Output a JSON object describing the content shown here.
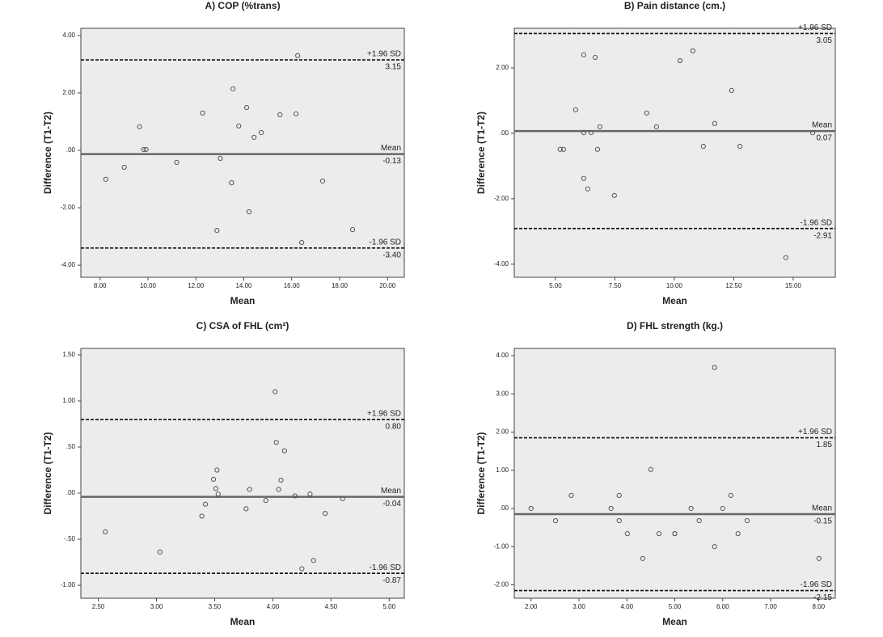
{
  "chart_data": [
    {
      "type": "scatter",
      "title": "A) COP (%trans)",
      "xlabel": "Mean",
      "ylabel": "Difference (T1-T2)",
      "color": "#555555",
      "x": [
        8.24,
        9.01,
        9.65,
        9.82,
        9.92,
        11.2,
        12.28,
        13.02,
        12.88,
        13.49,
        13.55,
        13.79,
        14.12,
        14.22,
        14.43,
        14.73,
        15.51,
        16.18,
        16.25,
        16.42,
        17.29,
        18.54
      ],
      "values": [
        -1.01,
        -0.59,
        0.82,
        0.03,
        0.03,
        -0.42,
        1.3,
        -0.28,
        -2.79,
        -1.13,
        2.14,
        0.85,
        1.49,
        -2.14,
        0.45,
        0.62,
        1.24,
        1.27,
        3.3,
        -3.21,
        -1.07,
        -2.76
      ],
      "xlim": [
        7.2,
        20.7
      ],
      "ylim": [
        -4.42,
        4.25
      ],
      "xticks": [
        {
          "value": 8,
          "label": "8.00"
        },
        {
          "value": 10,
          "label": "10.00"
        },
        {
          "value": 12,
          "label": "12.00"
        },
        {
          "value": 14,
          "label": "14.00"
        },
        {
          "value": 16,
          "label": "16.00"
        },
        {
          "value": 18,
          "label": "18.00"
        },
        {
          "value": 20,
          "label": "20.00"
        }
      ],
      "yticks": [
        {
          "value": 4,
          "label": "4.00"
        },
        {
          "value": 2,
          "label": "2.00"
        },
        {
          "value": 0,
          "label": ".00"
        },
        {
          "value": -2,
          "label": "-2.00"
        },
        {
          "value": -4,
          "label": "-4.00"
        }
      ],
      "lines": [
        {
          "name": "+1.96 SD",
          "value": 3.15
        },
        {
          "name": "Mean",
          "value": -0.13
        },
        {
          "name": "-1.96 SD",
          "value": -3.4,
          "value_label": "-3.40"
        }
      ]
    },
    {
      "type": "scatter",
      "title": "B) Pain distance (cm.)",
      "xlabel": "Mean",
      "ylabel": "Difference (T1-T2)",
      "color": "#555555",
      "x": [
        5.2,
        5.34,
        5.85,
        6.19,
        6.19,
        6.19,
        6.36,
        6.5,
        6.67,
        6.77,
        6.87,
        7.48,
        8.84,
        9.25,
        10.24,
        10.78,
        11.22,
        11.7,
        12.41,
        12.76,
        14.69,
        15.82
      ],
      "values": [
        -0.49,
        -0.49,
        0.72,
        2.4,
        0.02,
        -1.38,
        -1.7,
        0.02,
        2.32,
        -0.49,
        0.2,
        -1.9,
        0.62,
        0.2,
        2.22,
        2.52,
        -0.4,
        0.3,
        1.31,
        -0.4,
        -3.8,
        0.02
      ],
      "xlim": [
        3.27,
        16.77
      ],
      "ylim": [
        -4.4,
        3.21
      ],
      "xticks": [
        {
          "value": 5,
          "label": "5.00"
        },
        {
          "value": 7.5,
          "label": "7.50"
        },
        {
          "value": 10,
          "label": "10.00"
        },
        {
          "value": 12.5,
          "label": "12.50"
        },
        {
          "value": 15,
          "label": "15.00"
        }
      ],
      "yticks": [
        {
          "value": 2,
          "label": "2.00"
        },
        {
          "value": 0,
          "label": ".00"
        },
        {
          "value": -2,
          "label": "-2.00"
        },
        {
          "value": -4,
          "label": "-4.00"
        }
      ],
      "lines": [
        {
          "name": "+1.96 SD",
          "value": 3.05
        },
        {
          "name": "Mean",
          "value": 0.07
        },
        {
          "name": "-1.96 SD",
          "value": -2.91
        }
      ]
    },
    {
      "type": "scatter",
      "title": "C) CSA of FHL (cm²)",
      "xlabel": "Mean",
      "ylabel": "Difference (T1-T2)",
      "color": "#555555",
      "x": [
        2.56,
        3.03,
        3.39,
        3.42,
        3.49,
        3.51,
        3.52,
        3.53,
        3.77,
        3.8,
        3.94,
        4.02,
        4.03,
        4.05,
        4.07,
        4.1,
        4.19,
        4.25,
        4.32,
        4.35,
        4.45,
        4.6
      ],
      "values": [
        -0.42,
        -0.64,
        -0.25,
        -0.12,
        0.15,
        0.05,
        0.25,
        -0.01,
        -0.17,
        0.04,
        -0.08,
        1.1,
        0.55,
        0.04,
        0.14,
        0.46,
        -0.03,
        -0.82,
        -0.01,
        -0.73,
        -0.22,
        -0.06
      ],
      "xlim": [
        2.35,
        5.13
      ],
      "ylim": [
        -1.14,
        1.57
      ],
      "xticks": [
        {
          "value": 2.5,
          "label": "2.50"
        },
        {
          "value": 3,
          "label": "3.00"
        },
        {
          "value": 3.5,
          "label": "3.50"
        },
        {
          "value": 4,
          "label": "4.00"
        },
        {
          "value": 4.5,
          "label": "4.50"
        },
        {
          "value": 5,
          "label": "5.00"
        }
      ],
      "yticks": [
        {
          "value": 1.5,
          "label": "1.50"
        },
        {
          "value": 1,
          "label": "1.00"
        },
        {
          "value": 0.5,
          "label": ".50"
        },
        {
          "value": 0,
          "label": ".00"
        },
        {
          "value": -0.5,
          "label": "-.50"
        },
        {
          "value": -1,
          "label": "-1.00"
        }
      ],
      "lines": [
        {
          "name": "+1.96 SD",
          "value": 0.8,
          "value_label": "0.80"
        },
        {
          "name": "Mean",
          "value": -0.04
        },
        {
          "name": "-1.96 SD",
          "value": -0.87
        }
      ]
    },
    {
      "type": "scatter",
      "title": "D) FHL strength (kg.)",
      "xlabel": "Mean",
      "ylabel": "Difference (T1-T2)",
      "color": "#555555",
      "x": [
        2.0,
        2.51,
        2.84,
        3.67,
        3.84,
        3.84,
        4.01,
        4.33,
        4.5,
        4.67,
        5.0,
        5.0,
        5.51,
        5.34,
        5.83,
        5.83,
        6.0,
        6.17,
        6.32,
        6.51,
        8.01
      ],
      "values": [
        0.0,
        -0.32,
        0.34,
        0.0,
        0.34,
        -0.32,
        -0.66,
        -1.31,
        1.02,
        -0.66,
        -0.66,
        -0.66,
        -0.32,
        0.0,
        3.69,
        -1.0,
        0.0,
        0.34,
        -0.66,
        -0.32,
        -1.31
      ],
      "xlim": [
        1.65,
        8.35
      ],
      "ylim": [
        -2.35,
        4.19
      ],
      "xticks": [
        {
          "value": 2,
          "label": "2.00"
        },
        {
          "value": 3,
          "label": "3.00"
        },
        {
          "value": 4,
          "label": "4.00"
        },
        {
          "value": 5,
          "label": "5.00"
        },
        {
          "value": 6,
          "label": "6.00"
        },
        {
          "value": 7,
          "label": "7.00"
        },
        {
          "value": 8,
          "label": "8.00"
        }
      ],
      "yticks": [
        {
          "value": 4,
          "label": "4.00"
        },
        {
          "value": 3,
          "label": "3.00"
        },
        {
          "value": 2,
          "label": "2.00"
        },
        {
          "value": 1,
          "label": "1.00"
        },
        {
          "value": 0,
          "label": ".00"
        },
        {
          "value": -1,
          "label": "-1.00"
        },
        {
          "value": -2,
          "label": "-2.00"
        }
      ],
      "lines": [
        {
          "name": "+1.96 SD",
          "value": 1.85
        },
        {
          "name": "Mean",
          "value": -0.15
        },
        {
          "name": "-1.96 SD",
          "value": -2.15
        }
      ]
    }
  ]
}
